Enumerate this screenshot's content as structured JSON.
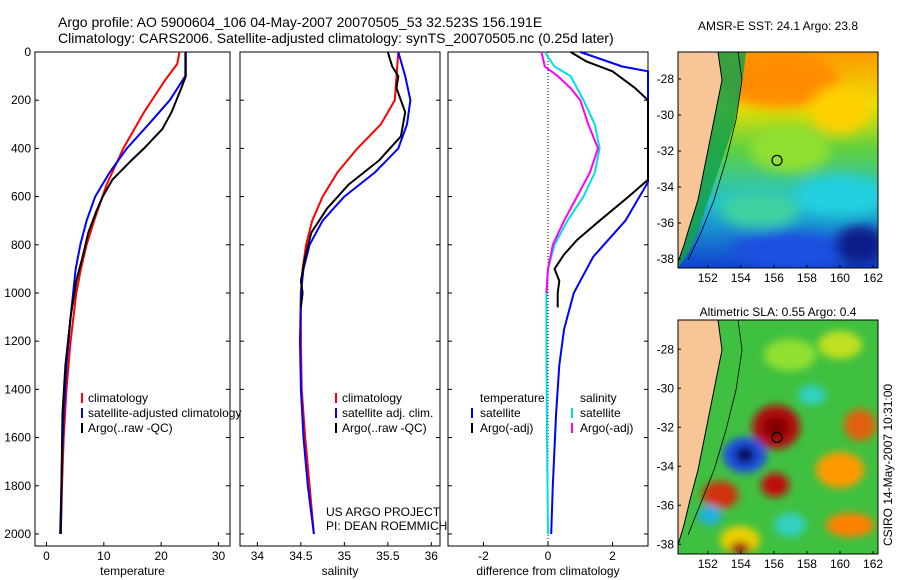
{
  "header": {
    "line1": "Argo profile: AO 5900604_106 04-May-2007 20070505_53 32.523S 156.191E",
    "line2": "Climatology: CARS2006. Satellite-adjusted climatology: synTS_20070505.nc (0.25d later)"
  },
  "colors": {
    "climatology": "#ff0000",
    "satellite": "#0000ff",
    "argo": "#000000",
    "sat_salinity": "#00e0e0",
    "argo_salinity": "#ff00ff",
    "land": "#f7c596"
  },
  "chart_data": [
    {
      "id": "temperature",
      "type": "line",
      "xlabel": "temperature",
      "ylabel": "",
      "xlim": [
        -2,
        32
      ],
      "ylim": [
        0,
        2050
      ],
      "y_inverted": true,
      "xticks": [
        "0",
        "10",
        "20",
        "30"
      ],
      "yticks": [
        "0",
        "200",
        "400",
        "600",
        "800",
        "1000",
        "1200",
        "1400",
        "1600",
        "1800",
        "2000"
      ],
      "legend": [
        "climatology",
        "satellite-adjusted climatology",
        "Argo(..raw -QC)"
      ],
      "series": [
        {
          "name": "climatology",
          "color": "#ff0000",
          "x": [
            23.2,
            22.8,
            20.6,
            17.0,
            13.4,
            10.5,
            8.3,
            7.0,
            6.0,
            5.2,
            4.2,
            3.5,
            3.0,
            2.7,
            2.5
          ],
          "y": [
            0,
            50,
            120,
            250,
            400,
            550,
            700,
            800,
            900,
            1000,
            1200,
            1400,
            1600,
            1800,
            2000
          ]
        },
        {
          "name": "satellite-adjusted climatology",
          "color": "#0000ff",
          "x": [
            24.2,
            24.2,
            21.5,
            17.8,
            14.0,
            11.0,
            8.5,
            7.0,
            5.9,
            5.1,
            4.2,
            3.5,
            3.0,
            2.7,
            2.5
          ],
          "y": [
            0,
            100,
            200,
            300,
            400,
            500,
            600,
            700,
            800,
            900,
            1100,
            1300,
            1500,
            1700,
            2000
          ]
        },
        {
          "name": "Argo(..raw -QC)",
          "color": "#000000",
          "x": [
            24.3,
            24.3,
            23.5,
            21.8,
            20.2,
            17.0,
            14.8,
            11.5,
            9.8,
            8.7,
            7.3,
            6.3,
            5.2,
            4.2,
            3.3,
            2.8,
            2.6,
            2.4
          ],
          "y": [
            0,
            100,
            150,
            250,
            320,
            400,
            450,
            530,
            600,
            660,
            750,
            850,
            950,
            1100,
            1300,
            1500,
            1800,
            2000
          ]
        }
      ]
    },
    {
      "id": "salinity",
      "type": "line",
      "xlabel": "salinity",
      "ylabel": "",
      "xlim": [
        33.8,
        36.1
      ],
      "ylim": [
        0,
        2050
      ],
      "y_inverted": true,
      "xticks": [
        "34",
        "34.5",
        "35",
        "35.5",
        "36"
      ],
      "legend": [
        "climatology",
        "satellite adj. clim.",
        "Argo(..raw -QC)"
      ],
      "series": [
        {
          "name": "climatology",
          "color": "#ff0000",
          "x": [
            35.62,
            35.6,
            35.58,
            35.42,
            35.15,
            34.92,
            34.75,
            34.63,
            34.56,
            34.52,
            34.5,
            34.5,
            34.51,
            34.55,
            34.6,
            34.65
          ],
          "y": [
            0,
            100,
            200,
            300,
            400,
            500,
            600,
            700,
            800,
            900,
            1000,
            1200,
            1400,
            1600,
            1800,
            2000
          ]
        },
        {
          "name": "satellite adj. clim.",
          "color": "#0000ff",
          "x": [
            35.62,
            35.7,
            35.76,
            35.72,
            35.62,
            35.35,
            35.0,
            34.75,
            34.6,
            34.53,
            34.5,
            34.49,
            34.5,
            34.53,
            34.58,
            34.65
          ],
          "y": [
            0,
            100,
            200,
            300,
            400,
            500,
            600,
            700,
            800,
            900,
            1000,
            1200,
            1400,
            1600,
            1800,
            2000
          ]
        },
        {
          "name": "Argo(..raw -QC)",
          "color": "#000000",
          "x": [
            35.5,
            35.55,
            35.62,
            35.6,
            35.7,
            35.65,
            35.4,
            35.05,
            34.8,
            34.62,
            34.55,
            34.5,
            34.52,
            34.5
          ],
          "y": [
            0,
            60,
            100,
            150,
            250,
            350,
            450,
            550,
            650,
            750,
            850,
            950,
            1000,
            1060
          ]
        }
      ]
    },
    {
      "id": "difference",
      "type": "line",
      "xlabel": "difference from climatology",
      "ylabel": "",
      "xlim": [
        -3.1,
        3.1
      ],
      "ylim": [
        0,
        2050
      ],
      "y_inverted": true,
      "xticks": [
        "-2",
        "0",
        "2"
      ],
      "legend_groups": [
        {
          "title": "temperature",
          "items": [
            "satellite",
            "Argo(-adj)"
          ]
        },
        {
          "title": "salinity",
          "items": [
            "satellite",
            "Argo(-adj)"
          ]
        }
      ],
      "series": [
        {
          "name": "temperature satellite",
          "color": "#0000ff",
          "x": [
            1.0,
            2.3,
            3.1,
            3.1,
            2.4,
            1.4,
            0.8,
            0.5,
            0.35,
            0.25,
            0.15,
            0.1
          ],
          "y": [
            0,
            60,
            80,
            540,
            700,
            850,
            1000,
            1150,
            1300,
            1500,
            1800,
            2000
          ]
        },
        {
          "name": "temperature Argo(-adj)",
          "color": "#000000",
          "x": [
            0.7,
            1.2,
            2.0,
            2.7,
            3.1,
            3.1,
            2.5,
            1.6,
            0.9,
            0.5,
            0.2,
            0.35,
            0.3,
            0.3
          ],
          "y": [
            0,
            40,
            80,
            150,
            200,
            530,
            600,
            700,
            780,
            840,
            900,
            950,
            1000,
            1060
          ]
        },
        {
          "name": "salinity satellite",
          "color": "#00e0e0",
          "x": [
            -0.1,
            0.2,
            0.7,
            1.1,
            1.45,
            1.6,
            1.45,
            1.1,
            0.6,
            0.2,
            0.0,
            -0.05,
            -0.05,
            -0.03,
            0.0
          ],
          "y": [
            0,
            60,
            100,
            200,
            300,
            400,
            500,
            600,
            700,
            800,
            900,
            1000,
            1200,
            1600,
            2000
          ]
        },
        {
          "name": "salinity Argo(-adj)",
          "color": "#ff00ff",
          "x": [
            -0.2,
            -0.1,
            0.3,
            0.7,
            1.0,
            1.25,
            1.55,
            1.3,
            0.9,
            0.5,
            0.15,
            0.0,
            -0.05
          ],
          "y": [
            0,
            60,
            100,
            150,
            200,
            300,
            400,
            500,
            600,
            700,
            800,
            900,
            1000
          ]
        }
      ]
    },
    {
      "id": "sst-map",
      "type": "heatmap",
      "title": "AMSR-E SST: 24.1  Argo: 23.8",
      "xlim": [
        150.2,
        162.3
      ],
      "ylim": [
        -38.5,
        -26.5
      ],
      "xticks": [
        "152",
        "154",
        "156",
        "158",
        "160",
        "162"
      ],
      "yticks": [
        "-28",
        "-30",
        "-32",
        "-34",
        "-36",
        "-38"
      ],
      "argo_position": {
        "lon": 156.19,
        "lat": -32.52
      }
    },
    {
      "id": "sla-map",
      "type": "heatmap",
      "title": "Altimetric SLA: 0.55  Argo: 0.4",
      "xlim": [
        150.2,
        162.3
      ],
      "ylim": [
        -38.5,
        -26.5
      ],
      "xticks": [
        "152",
        "154",
        "156",
        "158",
        "160",
        "162"
      ],
      "yticks": [
        "-28",
        "-30",
        "-32",
        "-34",
        "-36",
        "-38"
      ],
      "argo_position": {
        "lon": 156.19,
        "lat": -32.52
      }
    }
  ],
  "annotations": {
    "project": "US ARGO PROJECT",
    "pi": "PI: DEAN ROEMMICH",
    "credit": "CSIRO 14-May-2007 10:31:00"
  }
}
